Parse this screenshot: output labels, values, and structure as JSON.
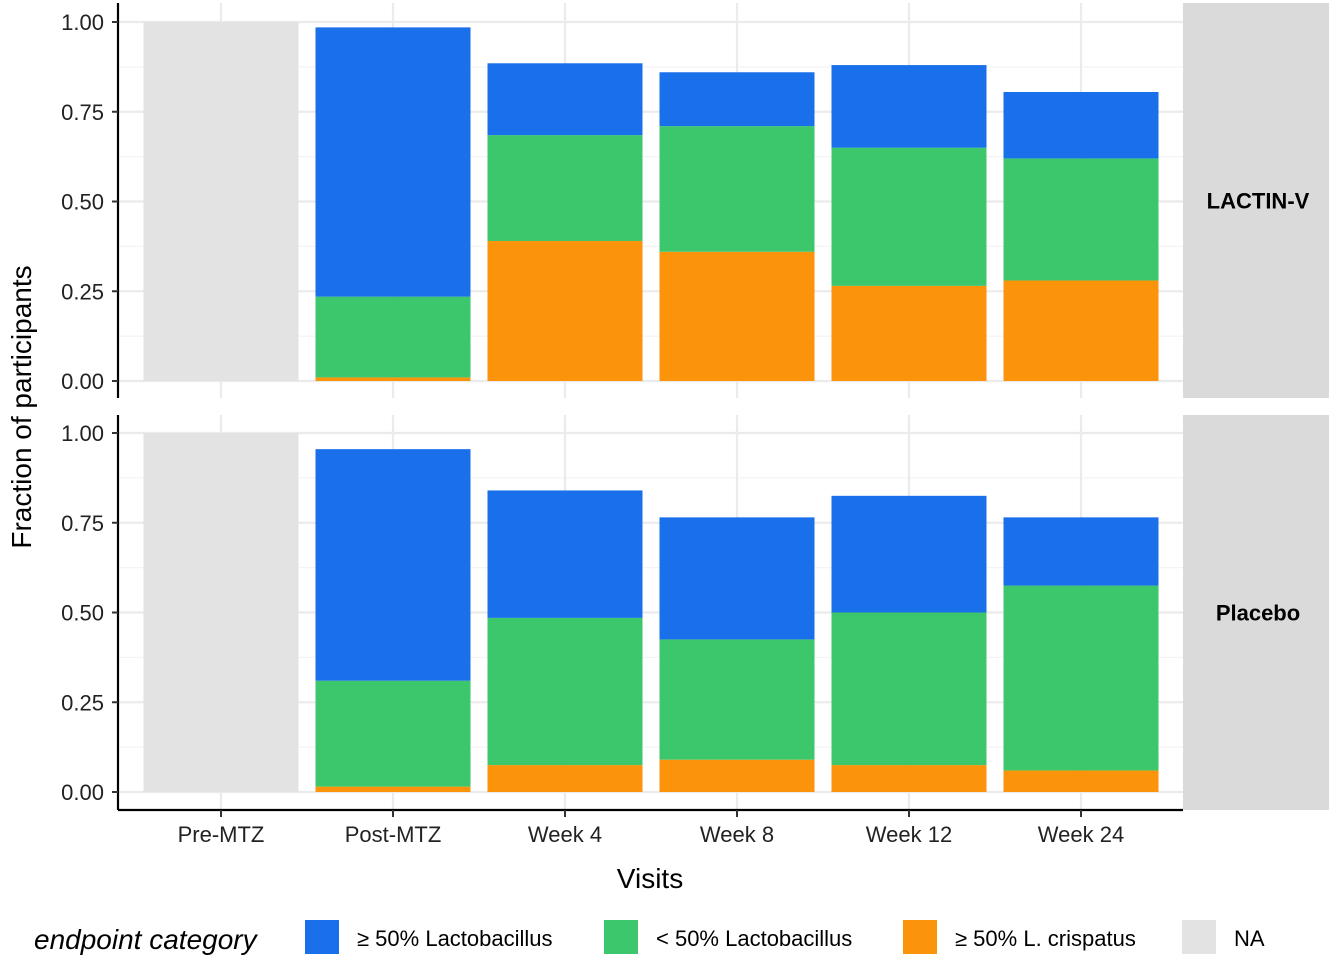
{
  "chart_data": {
    "type": "bar",
    "stacked": true,
    "xlabel": "Visits",
    "ylabel": "Fraction of participants",
    "ylim": [
      0,
      1
    ],
    "yticks": [
      "0.00",
      "0.25",
      "0.50",
      "0.75",
      "1.00"
    ],
    "categories": [
      "Pre-MTZ",
      "Post-MTZ",
      "Week 4",
      "Week 8",
      "Week 12",
      "Week 24"
    ],
    "grid": true,
    "legend_position": "bottom",
    "legend_title": "endpoint category",
    "legend": [
      {
        "label": "≥ 50% Lactobacillus",
        "color": "#1a6fea"
      },
      {
        "label": "< 50% Lactobacillus",
        "color": "#3cc76d"
      },
      {
        "label": "≥ 50% L. crispatus",
        "color": "#fb940b"
      },
      {
        "label": "NA",
        "color": "#e3e3e3"
      }
    ],
    "panels": [
      {
        "name": "LACTIN-V",
        "series": [
          {
            "name": "≥ 50% L. crispatus",
            "color": "#fb940b",
            "values": [
              0,
              0.01,
              0.39,
              0.36,
              0.265,
              0.28
            ]
          },
          {
            "name": "< 50% Lactobacillus",
            "color": "#3cc76d",
            "values": [
              0,
              0.225,
              0.295,
              0.35,
              0.385,
              0.34
            ]
          },
          {
            "name": "≥ 50% Lactobacillus",
            "color": "#1a6fea",
            "values": [
              0,
              0.75,
              0.2,
              0.15,
              0.23,
              0.185
            ]
          },
          {
            "name": "NA",
            "color": "#e3e3e3",
            "values": [
              1.0,
              0,
              0,
              0,
              0,
              0
            ]
          }
        ]
      },
      {
        "name": "Placebo",
        "series": [
          {
            "name": "≥ 50% L. crispatus",
            "color": "#fb940b",
            "values": [
              0,
              0.015,
              0.075,
              0.09,
              0.075,
              0.06
            ]
          },
          {
            "name": "< 50% Lactobacillus",
            "color": "#3cc76d",
            "values": [
              0,
              0.295,
              0.41,
              0.335,
              0.425,
              0.515
            ]
          },
          {
            "name": "≥ 50% Lactobacillus",
            "color": "#1a6fea",
            "values": [
              0,
              0.645,
              0.355,
              0.34,
              0.325,
              0.19
            ]
          },
          {
            "name": "NA",
            "color": "#e3e3e3",
            "values": [
              1.0,
              0,
              0,
              0,
              0,
              0
            ]
          }
        ]
      }
    ]
  }
}
